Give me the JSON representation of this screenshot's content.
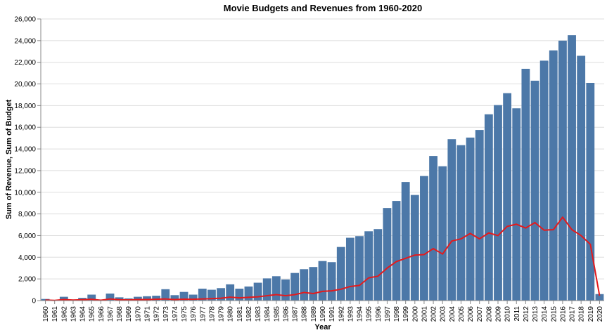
{
  "chart_data": {
    "type": "bar",
    "title": "Movie Budgets and Revenues from 1960-2020",
    "xlabel": "Year",
    "ylabel": "Sum of Revenue, Sum of Budget",
    "ylim": [
      0,
      26000
    ],
    "yticks": [
      0,
      2000,
      4000,
      6000,
      8000,
      10000,
      12000,
      14000,
      16000,
      18000,
      20000,
      22000,
      24000,
      26000
    ],
    "ytick_labels": [
      "0",
      "2,000",
      "4,000",
      "6,000",
      "8,000",
      "10,000",
      "12,000",
      "14,000",
      "16,000",
      "18,000",
      "20,000",
      "22,000",
      "24,000",
      "26,000"
    ],
    "grid": true,
    "categories": [
      "1960",
      "1961",
      "1962",
      "1963",
      "1964",
      "1965",
      "1966",
      "1967",
      "1968",
      "1969",
      "1970",
      "1971",
      "1972",
      "1973",
      "1974",
      "1975",
      "1976",
      "1977",
      "1978",
      "1979",
      "1980",
      "1981",
      "1982",
      "1983",
      "1984",
      "1985",
      "1986",
      "1987",
      "1988",
      "1989",
      "1990",
      "1991",
      "1992",
      "1993",
      "1994",
      "1995",
      "1996",
      "1997",
      "1998",
      "1999",
      "2000",
      "2001",
      "2002",
      "2003",
      "2004",
      "2005",
      "2006",
      "2007",
      "2008",
      "2009",
      "2010",
      "2011",
      "2012",
      "2013",
      "2014",
      "2015",
      "2016",
      "2017",
      "2018",
      "2019",
      "2020"
    ],
    "series": [
      {
        "kind": "bar",
        "color": "#4c78a8",
        "values": [
          150,
          50,
          350,
          100,
          250,
          550,
          50,
          650,
          300,
          200,
          350,
          400,
          450,
          1050,
          500,
          800,
          550,
          1100,
          1000,
          1150,
          1500,
          1100,
          1300,
          1650,
          2050,
          2250,
          1950,
          2550,
          2900,
          3100,
          3650,
          3550,
          4950,
          5800,
          5950,
          6400,
          6600,
          8550,
          9200,
          10950,
          9750,
          11500,
          13350,
          12400,
          14900,
          14350,
          15050,
          15750,
          17200,
          18050,
          19150,
          17750,
          21400,
          20300,
          22150,
          23100,
          24000,
          24500,
          22600,
          20100,
          600
        ]
      },
      {
        "kind": "line",
        "color": "#e41a1c",
        "values": [
          50,
          20,
          100,
          50,
          80,
          120,
          30,
          150,
          80,
          60,
          100,
          100,
          120,
          150,
          100,
          130,
          120,
          150,
          180,
          220,
          320,
          250,
          300,
          350,
          450,
          550,
          450,
          550,
          750,
          650,
          850,
          900,
          1050,
          1300,
          1400,
          2100,
          2250,
          3000,
          3600,
          3900,
          4200,
          4250,
          4800,
          4300,
          5500,
          5700,
          6200,
          5700,
          6250,
          6000,
          6850,
          7050,
          6700,
          7200,
          6500,
          6550,
          7700,
          6550,
          6000,
          5200,
          450
        ]
      }
    ]
  }
}
